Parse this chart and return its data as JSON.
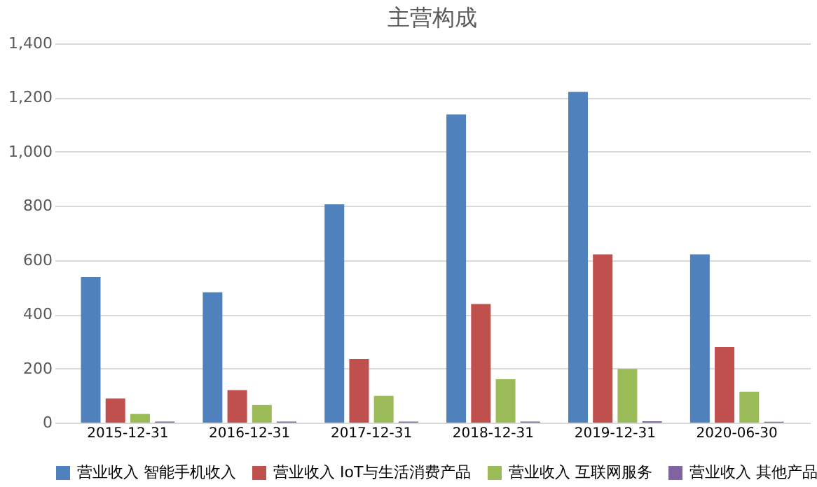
{
  "chart_data": {
    "type": "bar",
    "title": "主营构成",
    "categories": [
      "2015-12-31",
      "2016-12-31",
      "2017-12-31",
      "2018-12-31",
      "2019-12-31",
      "2020-06-30"
    ],
    "series": [
      {
        "name": "营业收入 智能手机收入",
        "color": "#4f81bd",
        "values": [
          537,
          481,
          806,
          1138,
          1221,
          621
        ]
      },
      {
        "name": "营业收入 IoT与生活消费产品",
        "color": "#c0504d",
        "values": [
          89,
          120,
          235,
          438,
          621,
          279
        ]
      },
      {
        "name": "营业收入 互联网服务",
        "color": "#9bbb59",
        "values": [
          32,
          65,
          99,
          160,
          198,
          114
        ]
      },
      {
        "name": "营业收入 其他产品",
        "color": "#8064a2",
        "values": [
          4,
          4,
          4,
          4,
          5,
          3
        ]
      }
    ],
    "ylim": [
      0,
      1400
    ],
    "yticks": [
      {
        "value": 0,
        "label": "0"
      },
      {
        "value": 200,
        "label": "200"
      },
      {
        "value": 400,
        "label": "400"
      },
      {
        "value": 600,
        "label": "600"
      },
      {
        "value": 800,
        "label": "800"
      },
      {
        "value": 1000,
        "label": "1,000"
      },
      {
        "value": 1200,
        "label": "1,200"
      },
      {
        "value": 1400,
        "label": "1,400"
      }
    ],
    "grid": "y",
    "legend": "bottom"
  }
}
